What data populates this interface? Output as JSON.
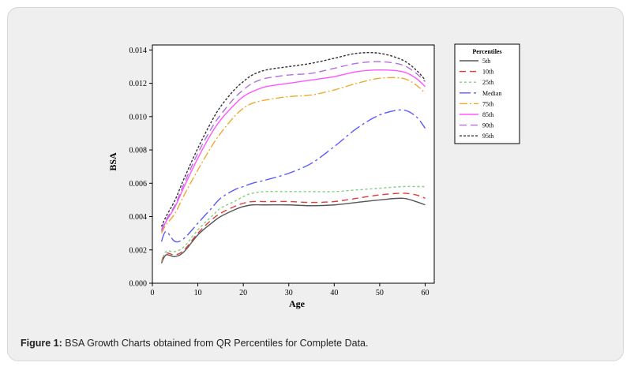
{
  "caption": {
    "label": "Figure 1:",
    "text": " BSA Growth Charts obtained from QR Percentiles for Complete Data."
  },
  "chart_data": {
    "type": "line",
    "title": "",
    "xlabel": "Age",
    "ylabel": "BSA",
    "xlim": [
      0,
      62
    ],
    "ylim": [
      0,
      0.0143
    ],
    "xticks": [
      0,
      10,
      20,
      30,
      40,
      50,
      60
    ],
    "yticks": [
      "0.000",
      "0.002",
      "0.004",
      "0.006",
      "0.008",
      "0.010",
      "0.012",
      "0.014"
    ],
    "grid": false,
    "legend": {
      "title": "Percentiles",
      "placement": "right-outside-top"
    },
    "x": [
      2,
      3,
      5,
      7,
      10,
      13,
      15,
      18,
      20,
      22,
      25,
      30,
      35,
      40,
      45,
      50,
      55,
      58,
      60
    ],
    "series": [
      {
        "name": "5th",
        "color": "#555555",
        "dash": "solid",
        "values": [
          0.0012,
          0.0017,
          0.0016,
          0.0019,
          0.0029,
          0.0036,
          0.004,
          0.0044,
          0.0046,
          0.0047,
          0.0047,
          0.0047,
          0.00465,
          0.0047,
          0.00485,
          0.005,
          0.0051,
          0.0049,
          0.0047
        ]
      },
      {
        "name": "10th",
        "color": "#e03a3a",
        "dash": "8,5",
        "values": [
          0.0013,
          0.0018,
          0.0017,
          0.002,
          0.003,
          0.0038,
          0.0042,
          0.0046,
          0.0048,
          0.0049,
          0.0049,
          0.0049,
          0.00485,
          0.0049,
          0.0051,
          0.0053,
          0.0054,
          0.0053,
          0.0051
        ]
      },
      {
        "name": "25th",
        "color": "#7fcf7f",
        "dash": "3,3",
        "values": [
          0.0013,
          0.0019,
          0.0019,
          0.0022,
          0.0032,
          0.004,
          0.0045,
          0.0049,
          0.0052,
          0.0054,
          0.0055,
          0.0055,
          0.0055,
          0.0055,
          0.0056,
          0.0057,
          0.0058,
          0.0058,
          0.0058
        ]
      },
      {
        "name": "Median",
        "color": "#5a5aff",
        "dash": "14,4,3,4",
        "values": [
          0.0025,
          0.0031,
          0.0025,
          0.0027,
          0.0036,
          0.0045,
          0.0051,
          0.0056,
          0.0058,
          0.006,
          0.0062,
          0.0066,
          0.0072,
          0.0082,
          0.0093,
          0.0101,
          0.0104,
          0.01,
          0.0093
        ]
      },
      {
        "name": "75th",
        "color": "#f0a830",
        "dash": "10,3,2,3",
        "values": [
          0.003,
          0.0035,
          0.0042,
          0.0053,
          0.0068,
          0.0082,
          0.009,
          0.01,
          0.0105,
          0.0108,
          0.011,
          0.0112,
          0.0113,
          0.0116,
          0.012,
          0.0123,
          0.0123,
          0.0119,
          0.0114
        ]
      },
      {
        "name": "85th",
        "color": "#ff55ff",
        "dash": "solid",
        "values": [
          0.0031,
          0.0037,
          0.0046,
          0.0058,
          0.0075,
          0.009,
          0.0098,
          0.0107,
          0.0112,
          0.0115,
          0.0118,
          0.012,
          0.0122,
          0.0124,
          0.0127,
          0.0128,
          0.0127,
          0.0123,
          0.0118
        ]
      },
      {
        "name": "90th",
        "color": "#b070e0",
        "dash": "9,5",
        "values": [
          0.0032,
          0.0038,
          0.0047,
          0.006,
          0.0078,
          0.0093,
          0.0101,
          0.0111,
          0.0116,
          0.012,
          0.0123,
          0.0125,
          0.0126,
          0.0129,
          0.0132,
          0.0133,
          0.0131,
          0.0126,
          0.0121
        ]
      },
      {
        "name": "95th",
        "color": "#333333",
        "dash": "3,2",
        "values": [
          0.0034,
          0.004,
          0.005,
          0.0063,
          0.0081,
          0.0097,
          0.0106,
          0.0116,
          0.0121,
          0.0125,
          0.0128,
          0.013,
          0.0132,
          0.0135,
          0.0138,
          0.0138,
          0.0134,
          0.0128,
          0.0122
        ]
      }
    ]
  }
}
